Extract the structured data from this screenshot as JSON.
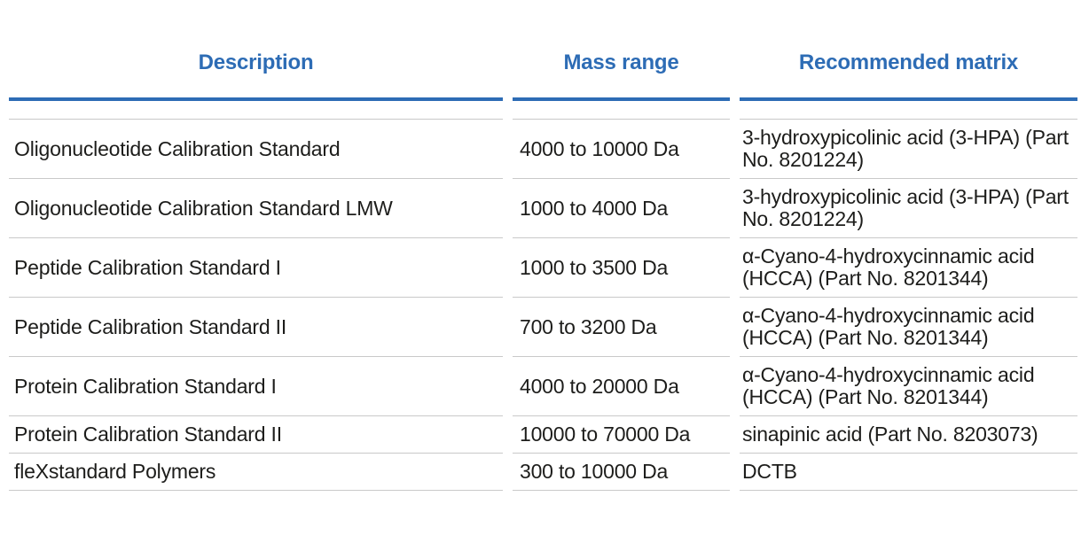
{
  "colors": {
    "accent_blue": "#2d6cb5",
    "divider_gray": "#c9c9c9",
    "body_text": "#1d1d1b",
    "background": "#ffffff"
  },
  "table": {
    "columns": [
      {
        "label": "Description"
      },
      {
        "label": "Mass range"
      },
      {
        "label": "Recommended matrix"
      }
    ],
    "rows": [
      {
        "description": "Oligonucleotide Calibration Standard",
        "mass_range": "4000 to 10000 Da",
        "matrix": "3-hydroxypicolinic acid (3-HPA) (Part No. 8201224)"
      },
      {
        "description": "Oligonucleotide Calibration Standard LMW",
        "mass_range": "1000 to 4000 Da",
        "matrix": "3-hydroxypicolinic acid (3-HPA) (Part No. 8201224)"
      },
      {
        "description": "Peptide Calibration Standard I",
        "mass_range": "1000 to 3500 Da",
        "matrix": "α-Cyano-4-hydroxycinnamic acid (HCCA) (Part No. 8201344)"
      },
      {
        "description": "Peptide Calibration Standard II",
        "mass_range": "700 to 3200 Da",
        "matrix": "α-Cyano-4-hydroxycinnamic acid (HCCA) (Part No. 8201344)"
      },
      {
        "description": "Protein Calibration Standard I",
        "mass_range": "4000 to 20000 Da",
        "matrix": "α-Cyano-4-hydroxycinnamic acid (HCCA) (Part No. 8201344)"
      },
      {
        "description": "Protein Calibration Standard II",
        "mass_range": "10000 to 70000 Da",
        "matrix": "sinapinic acid (Part No. 8203073)"
      },
      {
        "description": "fleXstandard Polymers",
        "mass_range": "300 to 10000 Da",
        "matrix": "DCTB"
      }
    ]
  }
}
